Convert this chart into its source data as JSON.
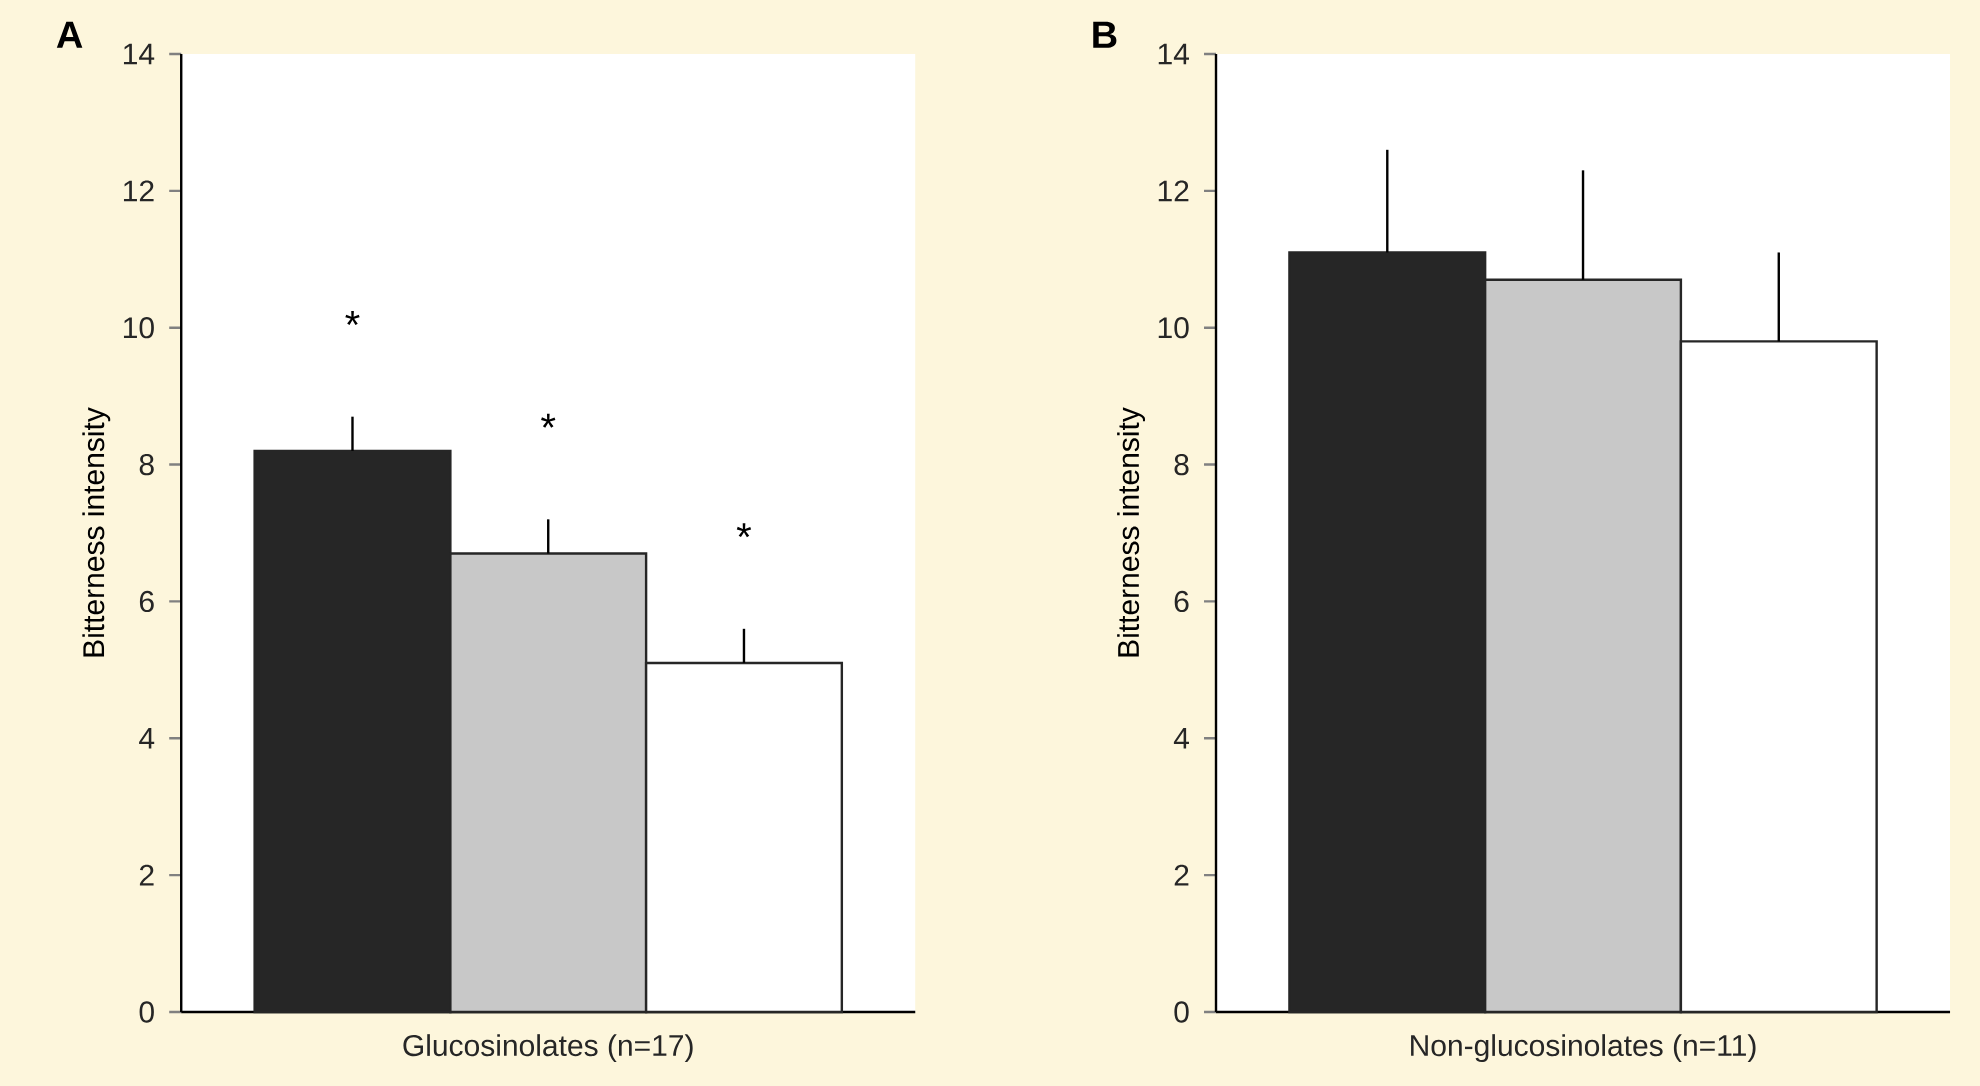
{
  "chart_data": [
    {
      "type": "bar",
      "title": "A",
      "ylabel": "Bitterness intensity",
      "categories": [
        "Glucosinolates (n=17)"
      ],
      "ylim": [
        0,
        14
      ],
      "yticks": [
        0,
        2,
        4,
        6,
        8,
        10,
        12,
        14
      ],
      "series": [
        {
          "color": "#262626",
          "values": [
            8.2
          ],
          "errors": [
            [
              8.2,
              8.7
            ]
          ]
        },
        {
          "color": "#c8c8c8",
          "values": [
            6.7
          ],
          "errors": [
            [
              6.7,
              7.2
            ]
          ]
        },
        {
          "color": "#ffffff",
          "values": [
            5.1
          ],
          "errors": [
            [
              5.1,
              5.6
            ]
          ]
        }
      ],
      "annotations": [
        "*",
        "*",
        "*"
      ]
    },
    {
      "type": "bar",
      "title": "B",
      "ylabel": "Bitterness intensity",
      "categories": [
        "Non-glucosinolates (n=11)"
      ],
      "ylim": [
        0,
        14
      ],
      "yticks": [
        0,
        2,
        4,
        6,
        8,
        10,
        12,
        14
      ],
      "series": [
        {
          "color": "#262626",
          "values": [
            11.1
          ],
          "errors": [
            [
              11.1,
              12.6
            ]
          ]
        },
        {
          "color": "#c8c8c8",
          "values": [
            10.7
          ],
          "errors": [
            [
              10.7,
              12.3
            ]
          ]
        },
        {
          "color": "#ffffff",
          "values": [
            9.8
          ],
          "errors": [
            [
              9.8,
              11.1
            ]
          ]
        }
      ]
    }
  ]
}
